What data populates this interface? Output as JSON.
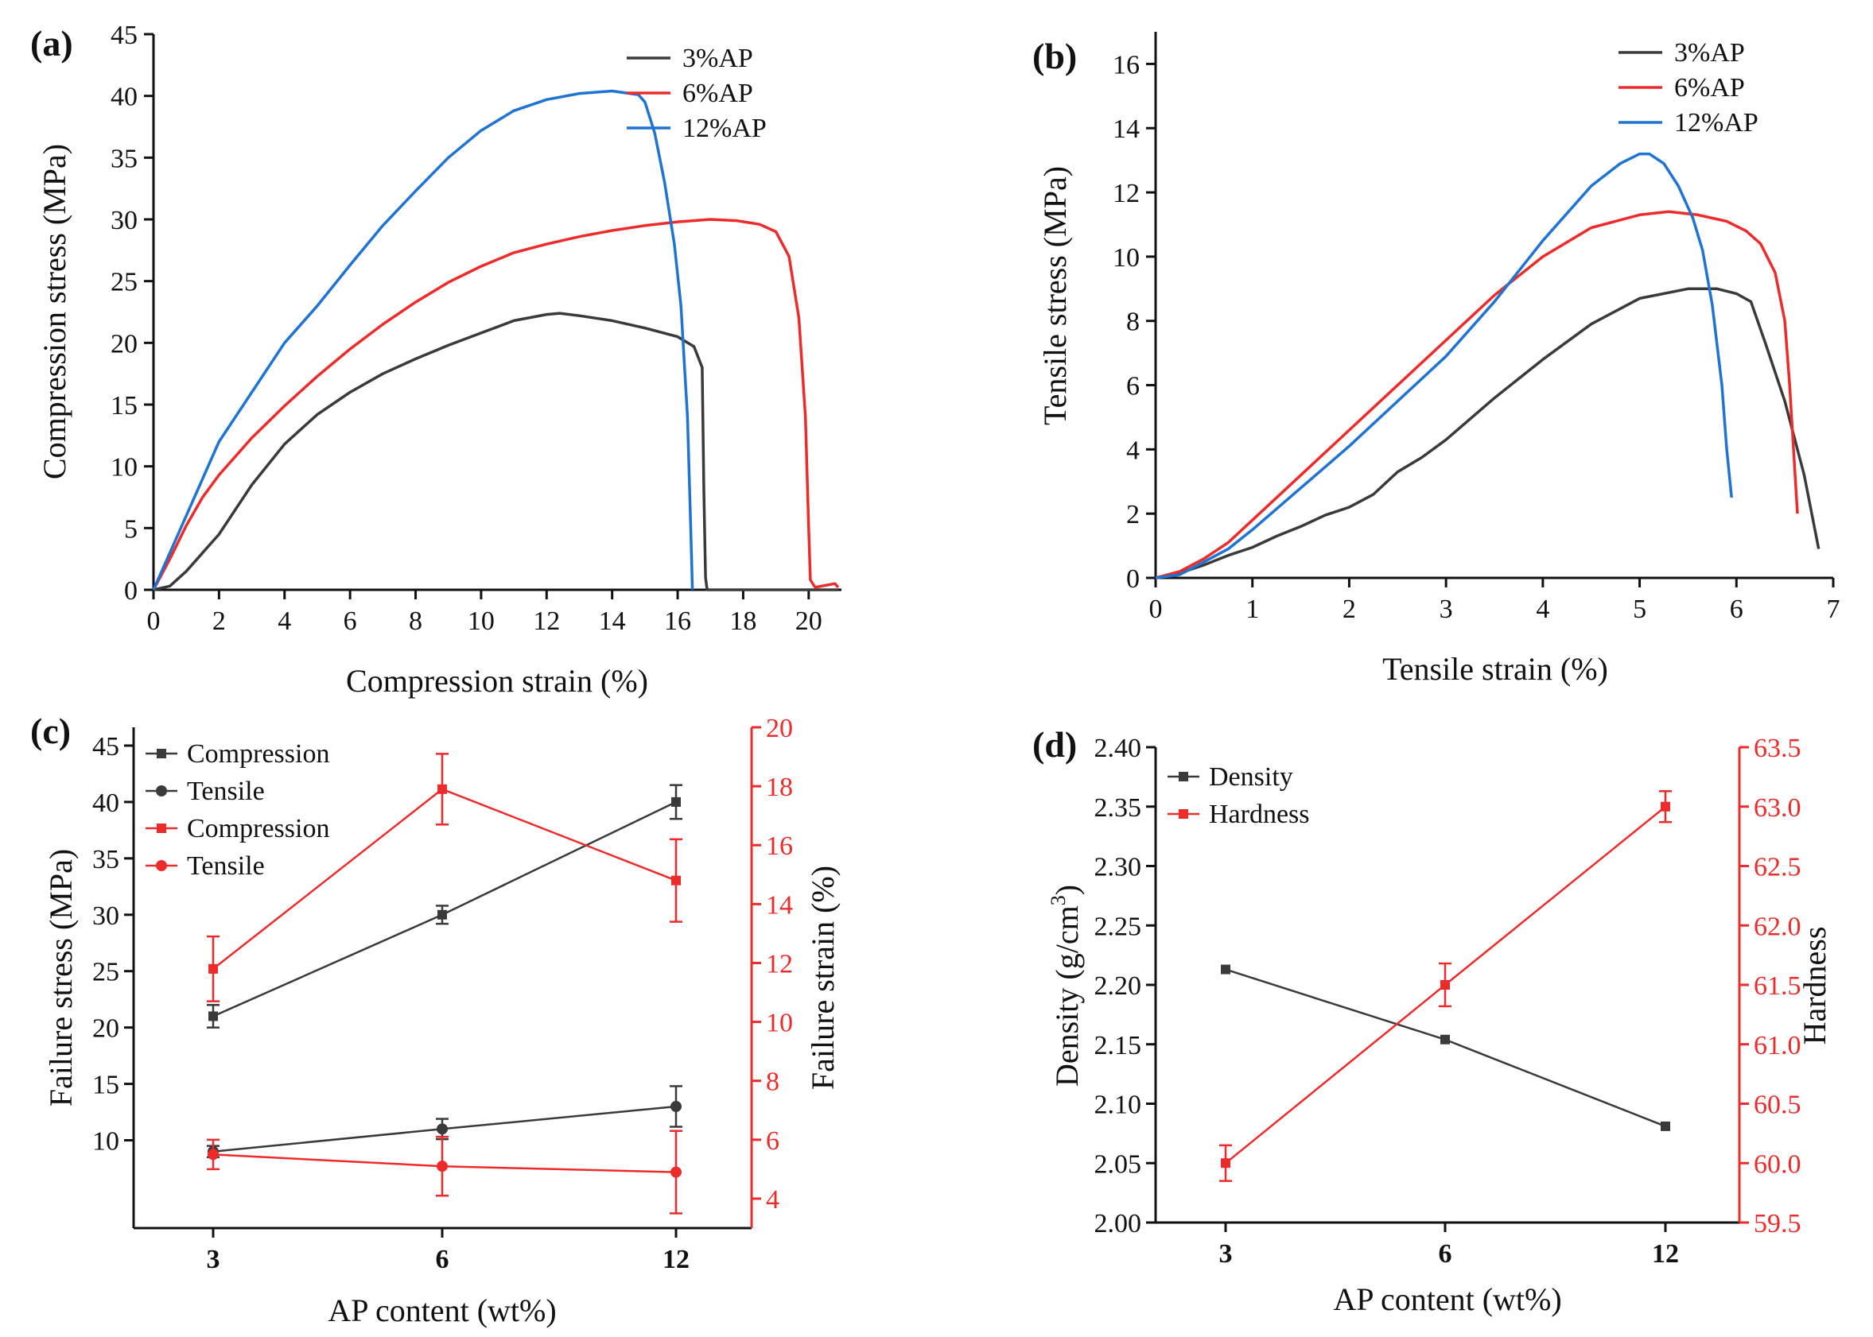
{
  "colors": {
    "black_series": "#3a3a3a",
    "red_series": "#ee2b2b",
    "blue_series": "#1f73d2",
    "axis": "#111111"
  },
  "chart_data": [
    {
      "panel": "(a)",
      "type": "line",
      "xlabel": "Compression strain (%)",
      "ylabel": "Compression stress (MPa)",
      "xlim": [
        0,
        21
      ],
      "ylim": [
        0,
        45
      ],
      "xticks": [
        0,
        2,
        4,
        6,
        8,
        10,
        12,
        14,
        16,
        18,
        20
      ],
      "yticks": [
        0,
        5,
        10,
        15,
        20,
        25,
        30,
        35,
        40,
        45
      ],
      "legend_position": "top-right",
      "series": [
        {
          "name": "3%AP",
          "color": "#3a3a3a",
          "x": [
            0,
            0.5,
            1,
            1.5,
            2,
            2.5,
            3,
            4,
            5,
            6,
            7,
            8,
            9,
            10,
            11,
            12,
            12.4,
            13,
            14,
            15,
            16,
            16.5,
            16.75,
            16.8,
            16.85,
            16.9,
            20.9
          ],
          "y": [
            0,
            0.3,
            1.5,
            3,
            4.5,
            6.5,
            8.5,
            11.8,
            14.2,
            16,
            17.5,
            18.7,
            19.8,
            20.8,
            21.8,
            22.3,
            22.4,
            22.2,
            21.8,
            21.2,
            20.5,
            19.7,
            18,
            8,
            1,
            0,
            0
          ]
        },
        {
          "name": "6%AP",
          "color": "#ee2b2b",
          "x": [
            0,
            0.5,
            1,
            1.5,
            2,
            3,
            4,
            5,
            6,
            7,
            8,
            9,
            10,
            11,
            12,
            13,
            14,
            15,
            16,
            17,
            17.8,
            18.5,
            19,
            19.4,
            19.7,
            19.9,
            20,
            20.05,
            20.2,
            20.8,
            20.9
          ],
          "y": [
            0,
            2.5,
            5.2,
            7.5,
            9.3,
            12.3,
            14.9,
            17.3,
            19.5,
            21.5,
            23.3,
            24.9,
            26.2,
            27.3,
            28,
            28.6,
            29.1,
            29.5,
            29.8,
            30,
            29.9,
            29.6,
            29,
            27,
            22,
            14,
            5,
            0.8,
            0.2,
            0.5,
            0.2
          ]
        },
        {
          "name": "12%AP",
          "color": "#1f73d2",
          "x": [
            0,
            0.5,
            1,
            1.5,
            2,
            3,
            4,
            5,
            6,
            7,
            8,
            9,
            10,
            11,
            12,
            13,
            14,
            14.8,
            15,
            15.3,
            15.6,
            15.9,
            16.1,
            16.3,
            16.4,
            16.45
          ],
          "y": [
            0,
            3,
            6,
            9,
            12,
            16,
            20,
            23,
            26.3,
            29.5,
            32.3,
            35,
            37.2,
            38.8,
            39.7,
            40.2,
            40.4,
            40.1,
            39.5,
            37,
            33,
            28,
            23,
            14,
            5,
            0
          ]
        }
      ]
    },
    {
      "panel": "(b)",
      "type": "line",
      "xlabel": "Tensile strain (%)",
      "ylabel": "Tensile stress (MPa)",
      "xlim": [
        0,
        7
      ],
      "ylim": [
        0,
        17
      ],
      "xticks": [
        0,
        1,
        2,
        3,
        4,
        5,
        6,
        7
      ],
      "yticks": [
        0,
        2,
        4,
        6,
        8,
        10,
        12,
        14,
        16
      ],
      "legend_position": "top-right",
      "series": [
        {
          "name": "3%AP",
          "color": "#3a3a3a",
          "x": [
            0,
            0.25,
            0.5,
            0.75,
            1,
            1.25,
            1.5,
            1.75,
            2,
            2.25,
            2.5,
            2.75,
            3,
            3.5,
            4,
            4.5,
            5,
            5.5,
            5.8,
            6,
            6.15,
            6.3,
            6.5,
            6.7,
            6.85
          ],
          "y": [
            0,
            0.15,
            0.4,
            0.7,
            0.95,
            1.3,
            1.6,
            1.95,
            2.2,
            2.6,
            3.3,
            3.75,
            4.3,
            5.6,
            6.8,
            7.9,
            8.7,
            9,
            9,
            8.85,
            8.6,
            7.3,
            5.5,
            3.2,
            0.9
          ]
        },
        {
          "name": "6%AP",
          "color": "#ee2b2b",
          "x": [
            0,
            0.25,
            0.5,
            0.75,
            1,
            1.5,
            2,
            2.5,
            3,
            3.5,
            4,
            4.5,
            5,
            5.3,
            5.6,
            5.9,
            6.1,
            6.25,
            6.4,
            6.5,
            6.55,
            6.6,
            6.63
          ],
          "y": [
            0,
            0.2,
            0.6,
            1.1,
            1.8,
            3.2,
            4.6,
            6,
            7.4,
            8.8,
            10,
            10.9,
            11.3,
            11.4,
            11.3,
            11.1,
            10.8,
            10.4,
            9.5,
            8,
            6,
            3.5,
            2
          ]
        },
        {
          "name": "12%AP",
          "color": "#1f73d2",
          "x": [
            0,
            0.25,
            0.5,
            0.75,
            1,
            1.5,
            2,
            2.5,
            3,
            3.5,
            4,
            4.5,
            4.8,
            5,
            5.1,
            5.25,
            5.4,
            5.55,
            5.65,
            5.75,
            5.85,
            5.9,
            5.95
          ],
          "y": [
            0,
            0.1,
            0.5,
            0.9,
            1.5,
            2.8,
            4.1,
            5.5,
            6.9,
            8.6,
            10.5,
            12.2,
            12.9,
            13.2,
            13.2,
            12.9,
            12.2,
            11.2,
            10.2,
            8.5,
            6,
            4,
            2.5
          ]
        }
      ]
    },
    {
      "panel": "(c)",
      "type": "line",
      "xlabel": "AP content (wt%)",
      "ylabel": "Failure stress (MPa)",
      "y2label": "Failure strain (%)",
      "categories": [
        "3",
        "6",
        "12"
      ],
      "ylim": [
        7.5,
        45
      ],
      "yticks": [
        10,
        15,
        20,
        25,
        30,
        35,
        40,
        45
      ],
      "y2lim": [
        3,
        20
      ],
      "y2ticks": [
        4,
        6,
        8,
        10,
        12,
        14,
        16,
        18,
        20
      ],
      "legend_position": "top-left",
      "series": [
        {
          "name": "Compression",
          "axis": "left",
          "marker": "square",
          "color": "#3a3a3a",
          "values": [
            21,
            30,
            40
          ],
          "errors": [
            1,
            0.8,
            1.5
          ]
        },
        {
          "name": "Tensile",
          "axis": "left",
          "marker": "circle",
          "color": "#3a3a3a",
          "values": [
            9,
            11,
            13
          ],
          "errors": [
            0.5,
            0.9,
            1.8
          ]
        },
        {
          "name": "Compression",
          "axis": "right",
          "marker": "square",
          "color": "#ee2b2b",
          "values": [
            11.8,
            17.9,
            14.8
          ],
          "errors": [
            1.1,
            1.2,
            1.4
          ]
        },
        {
          "name": "Tensile",
          "axis": "right",
          "marker": "circle",
          "color": "#ee2b2b",
          "values": [
            5.5,
            5.1,
            4.9
          ],
          "errors": [
            0.5,
            1,
            1.4
          ]
        }
      ]
    },
    {
      "panel": "(d)",
      "type": "line",
      "xlabel": "AP content (wt%)",
      "ylabel_main": "Density (g/cm",
      "ylabel_sup": "3",
      "ylabel_close": ")",
      "y2label": "Hardness",
      "categories": [
        "3",
        "6",
        "12"
      ],
      "ylim": [
        2.0,
        2.4
      ],
      "yticks": [
        "2.00",
        "2.05",
        "2.10",
        "2.15",
        "2.20",
        "2.25",
        "2.30",
        "2.35",
        "2.40"
      ],
      "y2lim": [
        59.5,
        63.5
      ],
      "y2ticks": [
        "59.5",
        "60.0",
        "60.5",
        "61.0",
        "61.5",
        "62.0",
        "62.5",
        "63.0",
        "63.5"
      ],
      "legend_position": "top-left",
      "series": [
        {
          "name": "Density",
          "axis": "left",
          "marker": "square",
          "color": "#3a3a3a",
          "values": [
            2.213,
            2.154,
            2.081
          ],
          "errors": [
            0,
            0,
            0
          ]
        },
        {
          "name": "Hardness",
          "axis": "right",
          "marker": "square",
          "color": "#ee2b2b",
          "values": [
            60,
            61.5,
            63
          ],
          "errors": [
            0.15,
            0.18,
            0.13
          ]
        }
      ]
    }
  ]
}
